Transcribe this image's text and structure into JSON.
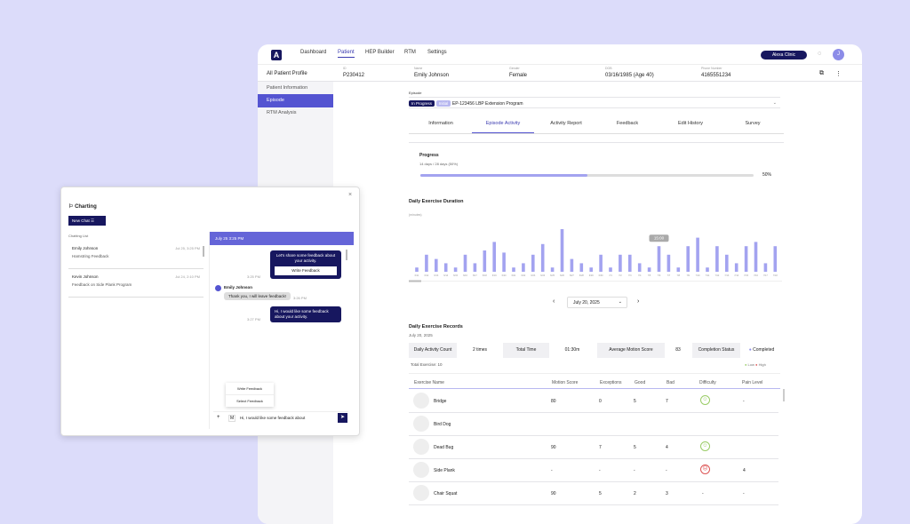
{
  "nav": {
    "logo": "A",
    "items": [
      "Dashboard",
      "Patient",
      "HEP Builder",
      "RTM",
      "Settings"
    ],
    "active": 1,
    "clinic_button": "Alexa Clinic",
    "avatar": "J"
  },
  "patient": {
    "back": "All Patient Profile",
    "fields": [
      {
        "label": "ID",
        "value": "P230412"
      },
      {
        "label": "Name",
        "value": "Emily Johnson"
      },
      {
        "label": "Gender",
        "value": "Female"
      },
      {
        "label": "DOB",
        "value": "03/16/1985 (Age 40)"
      },
      {
        "label": "Phone Number",
        "value": "4165551234"
      }
    ]
  },
  "sidebar": {
    "items": [
      "Patient Information",
      "Episode",
      "RTM Analysis"
    ],
    "active": 1
  },
  "episode": {
    "label": "Episode",
    "status_badge": "In Progress",
    "type_badge": "Initial",
    "name": "EP-123456 LBP Extension Program"
  },
  "tabs": {
    "items": [
      "Information",
      "Episode Activity",
      "Activity Report",
      "Feedback",
      "Edit History",
      "Survey"
    ],
    "active": 1
  },
  "progress": {
    "title": "Progress",
    "subtitle": "14 days / 28 days (50%)",
    "percent": 50,
    "percent_label": "50%"
  },
  "chart_data": {
    "type": "bar",
    "title": "Daily Exercise Duration",
    "ylabel": "(minutes)",
    "tooltip": "15:00",
    "tooltip_index": 25,
    "categories": [
      "6/11",
      "6/12",
      "6/13",
      "6/14",
      "6/15",
      "6/16",
      "6/17",
      "6/18",
      "6/19",
      "6/20",
      "6/21",
      "6/22",
      "6/23",
      "6/24",
      "6/25",
      "6/26",
      "6/27",
      "6/28",
      "6/29",
      "6/30",
      "7/1",
      "7/2",
      "7/3",
      "7/4",
      "7/5",
      "7/6",
      "7/7",
      "7/8",
      "7/9",
      "7/10",
      "7/11",
      "7/12",
      "7/13",
      "7/14",
      "7/15",
      "7/16",
      "7/17",
      "7/18",
      "7/19",
      "7/20"
    ],
    "values": [
      2,
      8,
      6,
      4,
      2,
      8,
      4,
      10,
      14,
      9,
      2,
      4,
      8,
      13,
      2,
      20,
      6,
      4,
      2,
      8,
      2,
      8,
      8,
      4,
      2,
      12,
      8,
      2,
      12,
      16,
      2,
      12,
      8,
      4,
      12,
      14,
      4,
      12,
      6,
      2
    ],
    "color": "#a3a3f0"
  },
  "date_picker": {
    "value": "July 20, 2025",
    "prev": "‹",
    "next": "›"
  },
  "records": {
    "title": "Daily Exercise Records",
    "date": "July 20, 2025",
    "summary": [
      {
        "label": "Daily Activity Count",
        "value": "2 times"
      },
      {
        "label": "Total Time",
        "value": "01:30m"
      },
      {
        "label": "Average Motion Score",
        "value": "83"
      },
      {
        "label": "Completion Status",
        "value": "Completed"
      }
    ],
    "total": "Total Exercise: 10",
    "legend": [
      "Low",
      "High"
    ],
    "columns": [
      "Exercise Name",
      "Motion Score",
      "Exceptions",
      "Good",
      "Bad",
      "Difficulty",
      "Pain Level"
    ],
    "rows": [
      {
        "name": "Bridge",
        "motion": "80",
        "exc": "0",
        "good": "5",
        "bad": "7",
        "difficulty": "good",
        "pain": "-"
      },
      {
        "name": "Bird Dog",
        "motion": "",
        "exc": "",
        "good": "",
        "bad": "",
        "difficulty": "",
        "pain": ""
      },
      {
        "name": "Dead Bug",
        "motion": "90",
        "exc": "7",
        "good": "5",
        "bad": "4",
        "difficulty": "good",
        "pain": ""
      },
      {
        "name": "Side Plank",
        "motion": "-",
        "exc": "-",
        "good": "-",
        "bad": "-",
        "difficulty": "bad",
        "pain": "4"
      },
      {
        "name": "Chair Squat",
        "motion": "90",
        "exc": "5",
        "good": "2",
        "bad": "3",
        "difficulty": "-",
        "pain": "-"
      }
    ]
  },
  "chat": {
    "title": "Charting",
    "new_chat": "New Chat",
    "list_label": "Chatting List",
    "list": [
      {
        "name": "Emily Johnson",
        "preview": "Hamstring Feedback",
        "date": "Jul 25, 3:25 PM"
      },
      {
        "name": "Kevin Johnson",
        "preview": "Feedback on Side Plank Program",
        "date": "Jul 24, 2:10 PM"
      }
    ],
    "header": "July 25 3:25 PM",
    "messages": [
      {
        "text": "Let's share some feedback about your activity.",
        "button": "Write Feedback",
        "time": "3:25 PM"
      },
      {
        "sender": "Emily Johnson",
        "text": "Thank you, I will leave feedback!",
        "time": "3:26 PM"
      },
      {
        "text": "Hi, I would like some feedback about your activity.",
        "time": "3:27 PM"
      }
    ],
    "menu": [
      "Write Feedback",
      "Select Feedback"
    ],
    "input_value": "Hi, I would like some feedback about"
  }
}
